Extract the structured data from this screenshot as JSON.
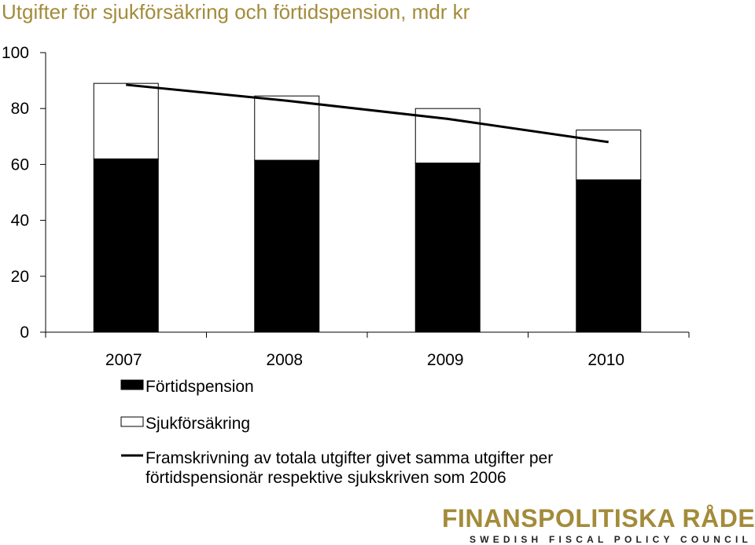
{
  "title": "Utgifter för sjukförsäkring och förtidspension, mdr kr",
  "chart_data": {
    "type": "bar",
    "stacked": true,
    "categories": [
      "2007",
      "2008",
      "2009",
      "2010"
    ],
    "ylim": [
      0,
      100
    ],
    "yticks": [
      "0",
      "20",
      "40",
      "60",
      "80",
      "100"
    ],
    "grid": false,
    "legend_position": "bottom-left",
    "series": [
      {
        "name": "Förtidspension",
        "values": [
          62,
          61.5,
          60.5,
          54.5
        ],
        "color": "#000000"
      },
      {
        "name": "Sjukförsäkring",
        "values": [
          27,
          23,
          19.5,
          17.8
        ],
        "color": "#ffffff"
      }
    ],
    "line": {
      "name_lines": [
        "Framskrivning av totala utgifter givet samma utgifter per",
        "förtidspensionär respektive sjukskriven som 2006"
      ],
      "values": [
        88.5,
        82.8,
        76.3,
        68
      ],
      "color": "#000000"
    }
  },
  "logo": {
    "name": "FINANSPOLITISKA RÅDET",
    "tagline": "SWEDISH FISCAL POLICY COUNCIL"
  }
}
